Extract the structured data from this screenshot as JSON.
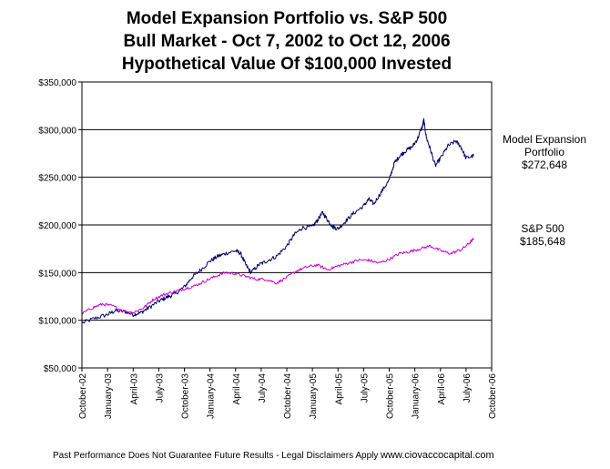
{
  "chart_data": {
    "type": "line",
    "title": [
      "Model Expansion Portfolio vs. S&P 500",
      "Bull Market - Oct 7, 2002 to Oct 12, 2006",
      "Hypothetical Value Of $100,000 Invested"
    ],
    "ylim": [
      50000,
      350000
    ],
    "y_ticks": [
      50000,
      100000,
      150000,
      200000,
      250000,
      300000,
      350000
    ],
    "y_tick_labels": [
      "$50,000",
      "$100,000",
      "$150,000",
      "$200,000",
      "$250,000",
      "$300,000",
      "$350,000"
    ],
    "x_tick_labels": [
      "October-02",
      "January-03",
      "April-03",
      "July-03",
      "October-03",
      "January-04",
      "April-04",
      "July-04",
      "October-04",
      "January-05",
      "April-05",
      "July-05",
      "October-05",
      "January-06",
      "April-06",
      "July-06",
      "October-06"
    ],
    "grid": "horizontal",
    "series": [
      {
        "name": "Model Expansion Portfolio",
        "color": "#000066",
        "end_label": [
          "Model Expansion",
          "Portfolio",
          "$272,648"
        ],
        "points": [
          [
            0,
            97000
          ],
          [
            0.5,
            102000
          ],
          [
            1,
            106000
          ],
          [
            1.3,
            110000
          ],
          [
            1.7,
            109000
          ],
          [
            2,
            106000
          ],
          [
            2.3,
            108000
          ],
          [
            2.6,
            113000
          ],
          [
            3,
            120000
          ],
          [
            3.3,
            124000
          ],
          [
            3.6,
            127000
          ],
          [
            4,
            135000
          ],
          [
            4.3,
            145000
          ],
          [
            4.6,
            152000
          ],
          [
            5,
            162000
          ],
          [
            5.3,
            167000
          ],
          [
            5.6,
            170000
          ],
          [
            6,
            173000
          ],
          [
            6.2,
            170000
          ],
          [
            6.4,
            158000
          ],
          [
            6.6,
            150000
          ],
          [
            6.9,
            158000
          ],
          [
            7.2,
            162000
          ],
          [
            7.6,
            167000
          ],
          [
            8,
            178000
          ],
          [
            8.3,
            190000
          ],
          [
            8.6,
            197000
          ],
          [
            9,
            198000
          ],
          [
            9.2,
            205000
          ],
          [
            9.4,
            213000
          ],
          [
            9.6,
            205000
          ],
          [
            9.8,
            198000
          ],
          [
            10,
            196000
          ],
          [
            10.3,
            204000
          ],
          [
            10.6,
            212000
          ],
          [
            11,
            220000
          ],
          [
            11.2,
            227000
          ],
          [
            11.4,
            222000
          ],
          [
            11.7,
            235000
          ],
          [
            12,
            247000
          ],
          [
            12.2,
            265000
          ],
          [
            12.4,
            272000
          ],
          [
            12.6,
            277000
          ],
          [
            12.9,
            282000
          ],
          [
            13.1,
            290000
          ],
          [
            13.3,
            304000
          ],
          [
            13.35,
            310000
          ],
          [
            13.45,
            292000
          ],
          [
            13.6,
            280000
          ],
          [
            13.8,
            262000
          ],
          [
            14,
            270000
          ],
          [
            14.3,
            283000
          ],
          [
            14.6,
            288000
          ],
          [
            14.8,
            282000
          ],
          [
            15,
            270000
          ],
          [
            15.3,
            272648
          ]
        ]
      },
      {
        "name": "S&P 500",
        "color": "#cc00cc",
        "end_label": [
          "S&P 500",
          "$185,648"
        ],
        "points": [
          [
            0,
            107000
          ],
          [
            0.4,
            113000
          ],
          [
            0.8,
            117000
          ],
          [
            1.2,
            115000
          ],
          [
            1.6,
            110000
          ],
          [
            2,
            108000
          ],
          [
            2.4,
            113000
          ],
          [
            2.8,
            122000
          ],
          [
            3.2,
            127000
          ],
          [
            3.6,
            130000
          ],
          [
            4,
            133000
          ],
          [
            4.4,
            136000
          ],
          [
            4.8,
            141000
          ],
          [
            5.2,
            146000
          ],
          [
            5.6,
            150000
          ],
          [
            6,
            149000
          ],
          [
            6.4,
            146000
          ],
          [
            6.8,
            143000
          ],
          [
            7.2,
            143000
          ],
          [
            7.6,
            139000
          ],
          [
            8,
            145000
          ],
          [
            8.4,
            152000
          ],
          [
            8.8,
            156000
          ],
          [
            9.2,
            158000
          ],
          [
            9.6,
            153000
          ],
          [
            10,
            157000
          ],
          [
            10.4,
            160000
          ],
          [
            10.8,
            163000
          ],
          [
            11.2,
            163000
          ],
          [
            11.6,
            160000
          ],
          [
            12,
            164000
          ],
          [
            12.4,
            170000
          ],
          [
            12.8,
            172000
          ],
          [
            13.2,
            175000
          ],
          [
            13.6,
            178000
          ],
          [
            14,
            173000
          ],
          [
            14.4,
            170000
          ],
          [
            14.8,
            174000
          ],
          [
            15.1,
            180000
          ],
          [
            15.3,
            185648
          ]
        ]
      }
    ]
  },
  "footer": {
    "disclaimer": "Past Performance Does Not Guarantee Future Results - Legal Disclaimers Apply",
    "website": "www.ciovaccocapital.com"
  }
}
